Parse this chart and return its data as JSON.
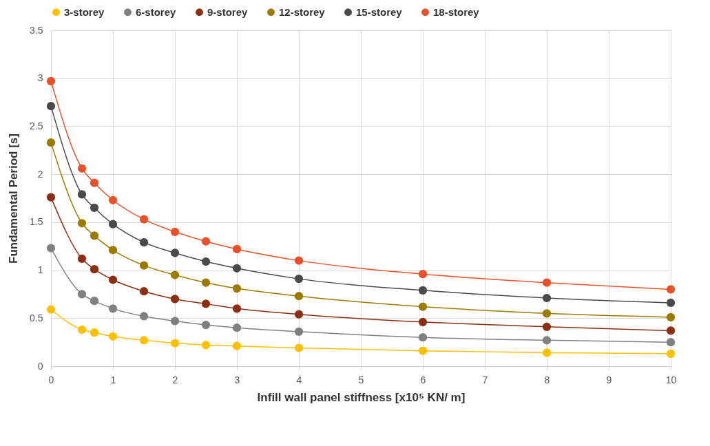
{
  "chart_data": {
    "type": "line",
    "xlabel": "Infill wall panel stiffness [x10⁵ KN/ m]",
    "ylabel": "Fundamental Period [s]",
    "x": [
      0,
      0.5,
      0.7,
      1,
      1.5,
      2,
      2.5,
      3,
      4,
      6,
      8,
      10
    ],
    "series": [
      {
        "name": "3-storey",
        "color": "#ffc000",
        "values": [
          0.59,
          0.38,
          0.35,
          0.31,
          0.27,
          0.24,
          0.22,
          0.21,
          0.19,
          0.16,
          0.14,
          0.13
        ]
      },
      {
        "name": "6-storey",
        "color": "#808080",
        "values": [
          1.23,
          0.75,
          0.68,
          0.6,
          0.52,
          0.47,
          0.43,
          0.4,
          0.36,
          0.3,
          0.27,
          0.25
        ]
      },
      {
        "name": "9-storey",
        "color": "#8b2e12",
        "values": [
          1.76,
          1.12,
          1.01,
          0.9,
          0.78,
          0.7,
          0.65,
          0.6,
          0.54,
          0.46,
          0.41,
          0.37
        ]
      },
      {
        "name": "12-storey",
        "color": "#9c7a00",
        "values": [
          2.33,
          1.49,
          1.36,
          1.21,
          1.05,
          0.95,
          0.87,
          0.81,
          0.73,
          0.62,
          0.55,
          0.51
        ]
      },
      {
        "name": "15-storey",
        "color": "#4a4a4a",
        "values": [
          2.71,
          1.79,
          1.65,
          1.48,
          1.29,
          1.18,
          1.09,
          1.02,
          0.91,
          0.79,
          0.71,
          0.66
        ]
      },
      {
        "name": "18-storey",
        "color": "#e8512a",
        "values": [
          2.97,
          2.06,
          1.91,
          1.73,
          1.53,
          1.4,
          1.3,
          1.22,
          1.1,
          0.96,
          0.87,
          0.8
        ]
      }
    ],
    "xlim": [
      0,
      10
    ],
    "xticks": [
      0,
      1,
      2,
      3,
      4,
      5,
      6,
      7,
      8,
      9,
      10
    ],
    "ylim": [
      0,
      3.5
    ],
    "yticks": [
      0,
      0.5,
      1,
      1.5,
      2,
      2.5,
      3,
      3.5
    ],
    "grid": true,
    "legend": "top",
    "marker": "circle",
    "line_style": "solid"
  }
}
